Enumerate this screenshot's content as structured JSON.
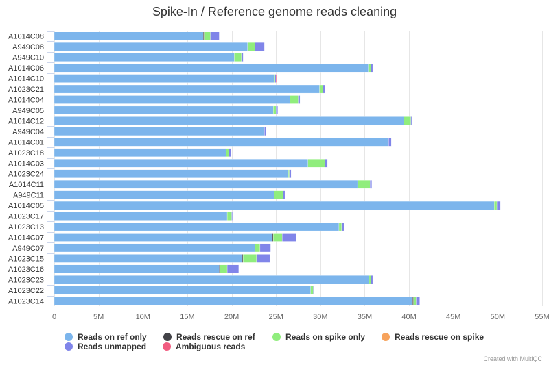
{
  "chart_data": {
    "type": "bar",
    "orientation": "horizontal",
    "stacked": true,
    "title": "Spike-In / Reference genome reads cleaning",
    "xlim": [
      0,
      55000000
    ],
    "x_ticks": [
      "0",
      "5M",
      "10M",
      "15M",
      "20M",
      "25M",
      "30M",
      "35M",
      "40M",
      "45M",
      "50M",
      "55M"
    ],
    "x_tick_values": [
      0,
      5000000,
      10000000,
      15000000,
      20000000,
      25000000,
      30000000,
      35000000,
      40000000,
      45000000,
      50000000,
      55000000
    ],
    "grid": true,
    "legend_position": "bottom",
    "categories": [
      "A1014C08",
      "A949C08",
      "A949C10",
      "A1014C06",
      "A1014C10",
      "A1023C21",
      "A1014C04",
      "A949C05",
      "A1014C12",
      "A949C04",
      "A1014C01",
      "A1023C18",
      "A1014C03",
      "A1023C24",
      "A1014C11",
      "A949C11",
      "A1014C05",
      "A1023C17",
      "A1023C13",
      "A1014C07",
      "A949C07",
      "A1023C15",
      "A1023C16",
      "A1023C23",
      "A1023C22",
      "A1023C14"
    ],
    "series": [
      {
        "name": "Reads on ref only",
        "color": "#7cb5ec",
        "values": [
          16800000,
          21800000,
          20300000,
          35400000,
          24800000,
          29900000,
          26600000,
          24700000,
          39400000,
          23700000,
          37700000,
          19400000,
          28600000,
          26400000,
          34200000,
          24800000,
          49600000,
          19500000,
          32100000,
          24600000,
          22600000,
          21200000,
          18600000,
          35500000,
          28900000,
          40400000
        ]
      },
      {
        "name": "Reads rescue on ref",
        "color": "#434348",
        "values": [
          100000,
          0,
          0,
          0,
          0,
          0,
          0,
          0,
          0,
          0,
          0,
          0,
          0,
          0,
          0,
          0,
          0,
          0,
          0,
          100000,
          0,
          100000,
          100000,
          0,
          0,
          100000
        ]
      },
      {
        "name": "Reads on spike only",
        "color": "#90ed7d",
        "values": [
          700000,
          800000,
          800000,
          300000,
          100000,
          400000,
          900000,
          300000,
          800000,
          0,
          0,
          300000,
          1900000,
          100000,
          1400000,
          1000000,
          300000,
          500000,
          300000,
          1000000,
          600000,
          1500000,
          800000,
          200000,
          300000,
          300000
        ]
      },
      {
        "name": "Reads rescue on spike",
        "color": "#f7a35c",
        "values": [
          0,
          0,
          0,
          0,
          0,
          0,
          0,
          0,
          0,
          0,
          0,
          0,
          0,
          0,
          0,
          0,
          0,
          0,
          0,
          0,
          0,
          0,
          0,
          0,
          0,
          0
        ]
      },
      {
        "name": "Reads unmapped",
        "color": "#8085e9",
        "values": [
          1000000,
          1100000,
          200000,
          200000,
          100000,
          200000,
          200000,
          200000,
          100000,
          200000,
          300000,
          200000,
          300000,
          200000,
          200000,
          200000,
          400000,
          100000,
          300000,
          1600000,
          1200000,
          1500000,
          1300000,
          200000,
          100000,
          400000
        ]
      },
      {
        "name": "Ambiguous reads",
        "color": "#f15c80",
        "values": [
          0,
          0,
          0,
          0,
          100000,
          0,
          0,
          0,
          0,
          0,
          0,
          0,
          0,
          0,
          0,
          0,
          0,
          0,
          0,
          0,
          0,
          0,
          0,
          0,
          0,
          0
        ]
      }
    ]
  },
  "credits": "Created with MultiQC"
}
